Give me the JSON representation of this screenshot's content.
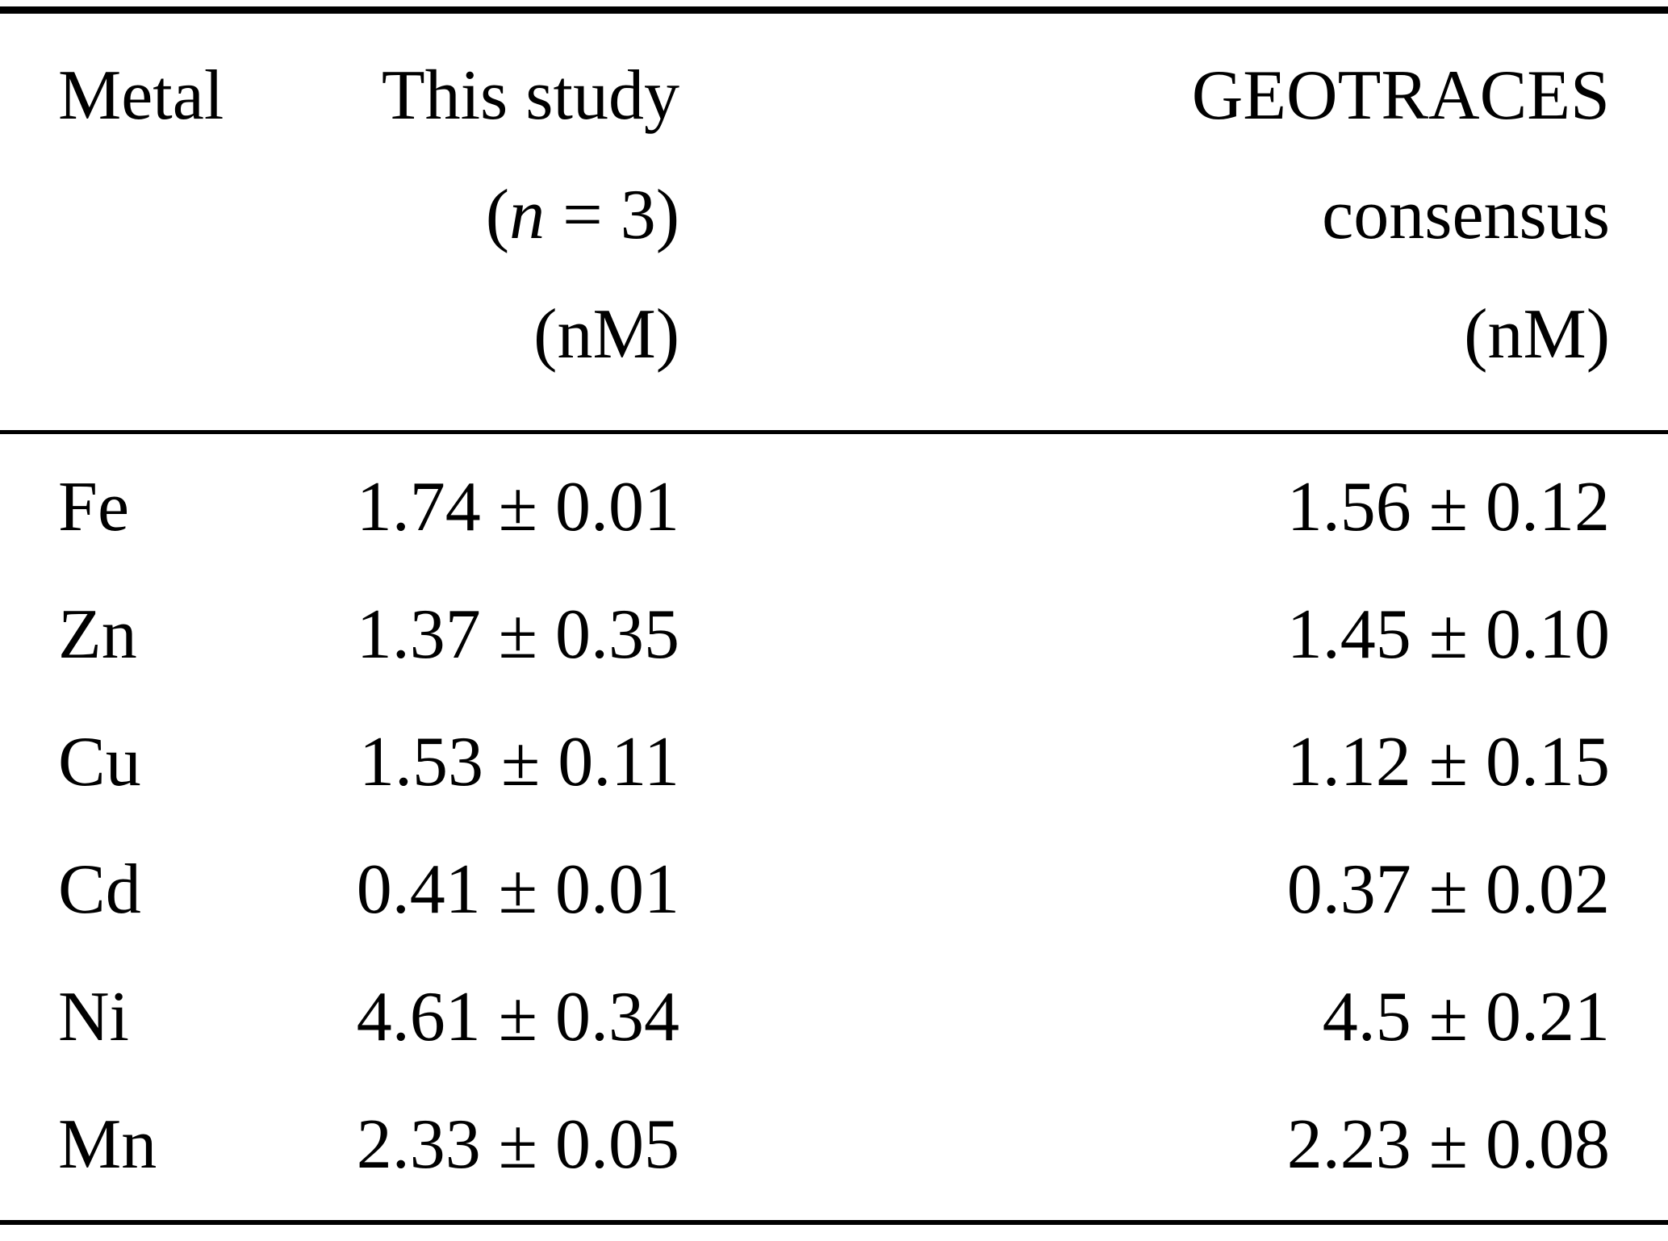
{
  "colors": {
    "text": "#000000",
    "rule": "#000000",
    "background": "#ffffff"
  },
  "table": {
    "header": {
      "col1": "Metal",
      "col2_line1": "This study",
      "col2_line2_prefix": "(",
      "col2_line2_var": "n",
      "col2_line2_suffix": " = 3)",
      "col2_line3": "(nM)",
      "col3_line1": "GEOTRACES",
      "col3_line2": "consensus",
      "col3_line3": "(nM)"
    },
    "rows": [
      {
        "metal": "Fe",
        "this_study": "1.74 ± 0.01",
        "consensus": "1.56 ± 0.12"
      },
      {
        "metal": "Zn",
        "this_study": "1.37 ± 0.35",
        "consensus": "1.45 ± 0.10"
      },
      {
        "metal": "Cu",
        "this_study": "1.53 ± 0.11",
        "consensus": "1.12 ± 0.15"
      },
      {
        "metal": "Cd",
        "this_study": "0.41 ± 0.01",
        "consensus": "0.37 ± 0.02"
      },
      {
        "metal": "Ni",
        "this_study": "4.61 ± 0.34",
        "consensus": "4.5 ± 0.21"
      },
      {
        "metal": "Mn",
        "this_study": "2.33 ± 0.05",
        "consensus": "2.23 ± 0.08"
      }
    ]
  }
}
